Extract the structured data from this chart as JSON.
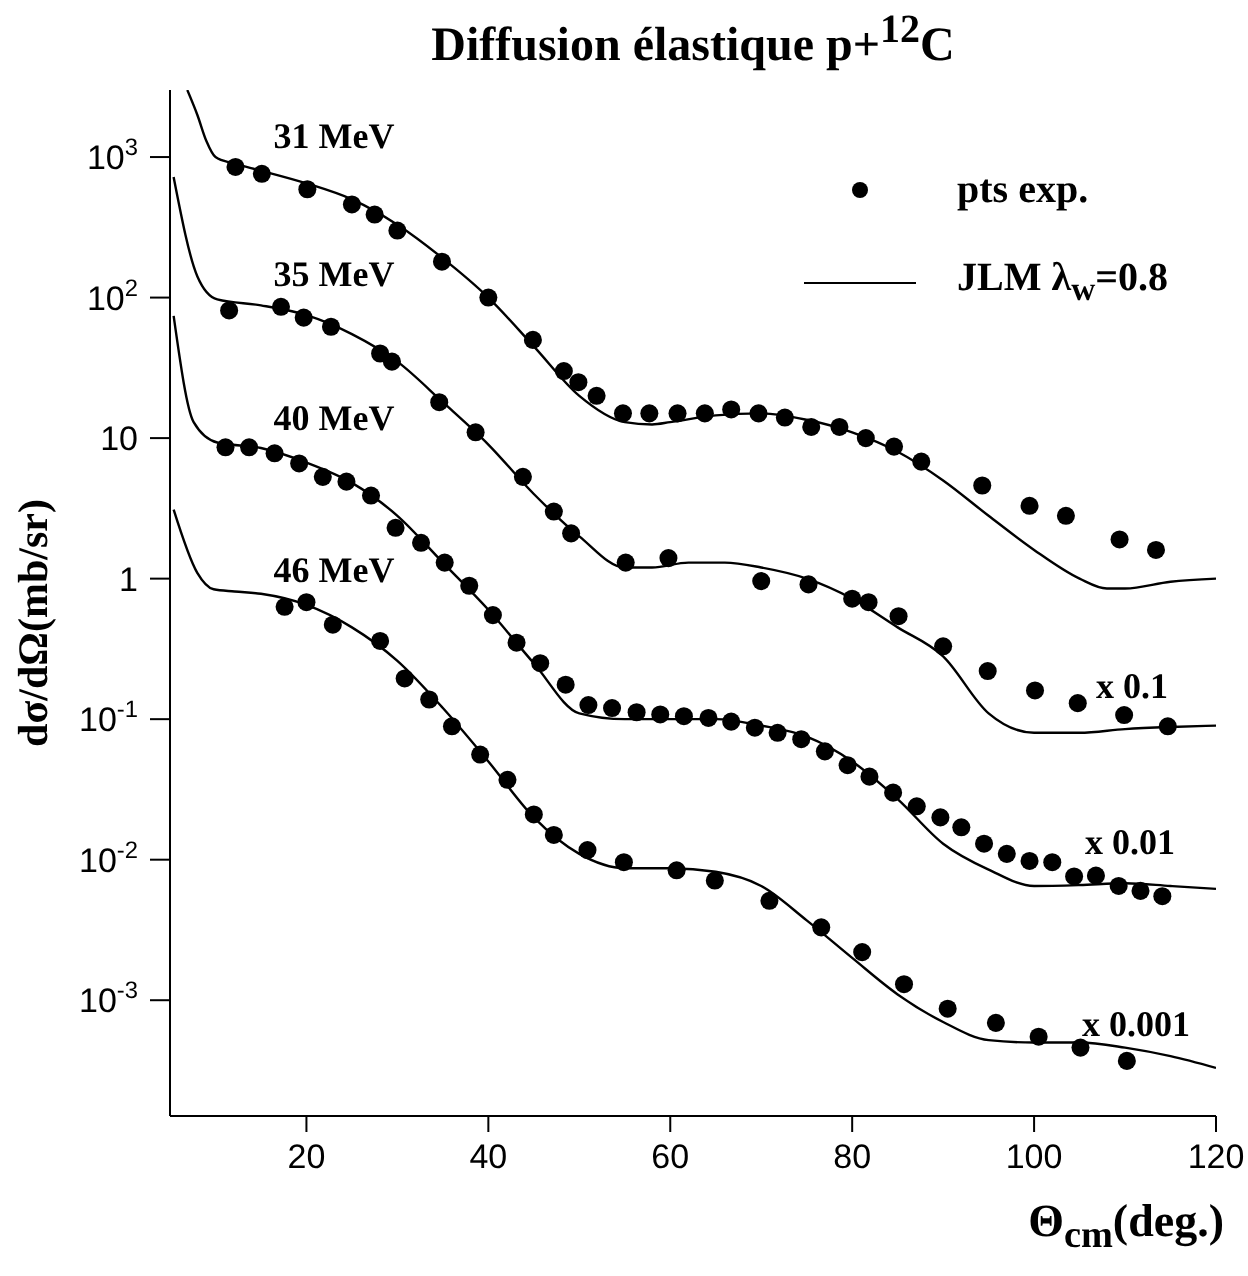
{
  "chart_data": {
    "type": "scatter",
    "title": "Diffusion élastique p+$^{12}$C",
    "xlabel": "Θ$_{cm}$(deg.)",
    "ylabel": "dσ/dΩ(mb/sr)",
    "xlim": [
      5,
      120
    ],
    "xticks": [
      20,
      40,
      60,
      80,
      100,
      120
    ],
    "ylim": [
      0.00015,
      3000
    ],
    "log": "y",
    "yticks": [
      {
        "value": 0.001,
        "label": "10$^{-3}$"
      },
      {
        "value": 0.01,
        "label": "10$^{-2}$"
      },
      {
        "value": 0.1,
        "label": "10$^{-1}$"
      },
      {
        "value": 1,
        "label": "1"
      },
      {
        "value": 10,
        "label": "10"
      },
      {
        "value": 100,
        "label": "10$^{2}$"
      },
      {
        "value": 1000,
        "label": "10$^{3}$"
      }
    ],
    "grid": false,
    "legend": "top right",
    "series": [
      {
        "name": "pts exp.",
        "marker": "circle",
        "color": "#000000",
        "x": [
          12.2,
          15.1,
          20.1,
          25.0,
          27.5,
          30.0,
          34.9,
          40.0,
          44.9,
          48.3,
          49.9,
          51.9,
          54.8,
          57.7,
          60.8,
          63.8,
          66.7,
          69.7,
          72.6,
          75.5,
          78.6,
          81.5,
          84.6,
          87.6,
          94.3,
          99.5,
          103.5,
          109.4,
          113.4
        ],
        "values": [
          850,
          760,
          590,
          460,
          390,
          300,
          180,
          100,
          50,
          30,
          25,
          20,
          15,
          15,
          15,
          15,
          16,
          15,
          14,
          12,
          12,
          10,
          8.7,
          6.8,
          4.6,
          3.3,
          2.8,
          1.9,
          1.6
        ]
      },
      {
        "marker": "circle",
        "color": "#000000",
        "x": [
          11.5,
          17.2,
          19.7,
          22.7,
          28.1,
          29.4,
          34.6,
          38.6,
          43.8,
          47.2,
          49.1,
          55.1,
          59.8,
          70.0,
          75.2,
          80.0,
          81.8,
          85.1,
          90.0,
          94.9,
          100.1,
          104.8,
          109.9,
          114.7
        ],
        "values": [
          81,
          86,
          72,
          62,
          40,
          35,
          18,
          11,
          5.3,
          3.0,
          2.1,
          1.3,
          1.4,
          0.96,
          0.91,
          0.72,
          0.68,
          0.54,
          0.33,
          0.22,
          0.16,
          0.13,
          0.107,
          0.089
        ]
      },
      {
        "marker": "circle",
        "color": "#000000",
        "x": [
          11.1,
          13.7,
          16.5,
          19.2,
          21.8,
          24.4,
          27.1,
          29.8,
          32.6,
          35.2,
          37.9,
          40.5,
          43.1,
          45.7,
          48.5,
          51.0,
          53.6,
          56.3,
          58.9,
          61.5,
          64.2,
          66.7,
          69.3,
          71.8,
          74.4,
          77.0,
          79.5,
          81.9,
          84.5,
          87.1,
          89.7,
          92.0,
          94.5,
          97.0,
          99.5,
          102.0,
          104.4,
          106.8,
          109.3,
          111.7,
          114.1
        ],
        "values": [
          8.6,
          8.6,
          7.8,
          6.6,
          5.3,
          4.9,
          3.9,
          2.3,
          1.8,
          1.3,
          0.89,
          0.55,
          0.35,
          0.25,
          0.176,
          0.126,
          0.12,
          0.112,
          0.108,
          0.105,
          0.102,
          0.096,
          0.087,
          0.08,
          0.072,
          0.059,
          0.047,
          0.039,
          0.03,
          0.024,
          0.02,
          0.017,
          0.013,
          0.011,
          0.0098,
          0.0096,
          0.0076,
          0.0077,
          0.0065,
          0.006,
          0.0055
        ]
      },
      {
        "marker": "circle",
        "color": "#000000",
        "x": [
          17.6,
          20.0,
          22.9,
          28.1,
          30.8,
          33.5,
          36.0,
          39.1,
          42.1,
          45.0,
          47.2,
          50.9,
          54.9,
          60.7,
          64.9,
          70.9,
          76.6,
          81.1,
          85.7,
          90.5,
          95.8,
          100.5,
          105.1,
          110.2
        ],
        "values": [
          0.63,
          0.68,
          0.47,
          0.36,
          0.195,
          0.138,
          0.089,
          0.056,
          0.037,
          0.021,
          0.015,
          0.0117,
          0.0096,
          0.0084,
          0.0071,
          0.0051,
          0.0033,
          0.0022,
          0.0013,
          0.00087,
          0.00069,
          0.00055,
          0.00046,
          0.00037
        ]
      },
      {
        "name": "JLM λ$_{w}$=0.8",
        "type": "line",
        "marker": "none",
        "color": "#000000",
        "x": [
          6.9,
          8,
          9,
          10,
          12,
          15,
          20,
          25,
          30,
          35,
          40,
          45,
          50,
          55,
          58,
          60,
          65,
          70,
          75,
          80,
          85,
          90,
          95,
          100,
          105,
          108,
          110,
          115,
          120
        ],
        "values": [
          3000,
          2000,
          1300,
          1000,
          900,
          800,
          650,
          500,
          330,
          190,
          100,
          45,
          20,
          13,
          12.5,
          13,
          14.5,
          15,
          13.5,
          11,
          8,
          5,
          2.8,
          1.6,
          1.0,
          0.85,
          0.85,
          0.95,
          1.0
        ]
      },
      {
        "type": "line",
        "marker": "none",
        "color": "#000000",
        "x": [
          5.4,
          8,
          10.2,
          15,
          20,
          25,
          30,
          35,
          40,
          45,
          50,
          55,
          58,
          62,
          66,
          70,
          75,
          80,
          85,
          90,
          95,
          100,
          105,
          110,
          115,
          120
        ],
        "values": [
          720,
          142,
          97,
          88,
          75,
          55,
          35,
          18,
          9,
          4,
          2.0,
          1.2,
          1.2,
          1.3,
          1.3,
          1.2,
          1.0,
          0.72,
          0.45,
          0.28,
          0.11,
          0.08,
          0.08,
          0.085,
          0.088,
          0.09
        ]
      },
      {
        "type": "line",
        "marker": "none",
        "color": "#000000",
        "x": [
          5.4,
          7.6,
          10.2,
          15,
          20,
          25,
          30,
          35,
          40,
          45,
          50,
          55,
          60,
          65,
          70,
          75,
          80,
          85,
          90,
          95,
          100,
          105,
          110,
          115,
          120
        ],
        "values": [
          74,
          13,
          9.3,
          8.5,
          6.7,
          4.8,
          2.8,
          1.3,
          0.6,
          0.25,
          0.11,
          0.1,
          0.1,
          0.1,
          0.09,
          0.075,
          0.05,
          0.027,
          0.013,
          0.0085,
          0.0065,
          0.0066,
          0.0068,
          0.0065,
          0.0062
        ]
      },
      {
        "type": "line",
        "marker": "none",
        "color": "#000000",
        "x": [
          5.4,
          8,
          9.8,
          12.1,
          15,
          20,
          25,
          30,
          35,
          40,
          45,
          50,
          55,
          60,
          65,
          70,
          75,
          80,
          85,
          90,
          95,
          100,
          105,
          110,
          115,
          120
        ],
        "values": [
          3.1,
          1.1,
          0.84,
          0.81,
          0.78,
          0.65,
          0.45,
          0.26,
          0.12,
          0.05,
          0.02,
          0.011,
          0.0087,
          0.0087,
          0.0082,
          0.0065,
          0.0037,
          0.002,
          0.0011,
          0.0007,
          0.00052,
          0.0005,
          0.0005,
          0.00046,
          0.0004,
          0.00033
        ]
      }
    ],
    "annotations": [
      "31 MeV",
      "35 MeV",
      "40 MeV",
      "46 MeV",
      "x 0.1",
      "x 0.01",
      "x 0.001"
    ]
  }
}
